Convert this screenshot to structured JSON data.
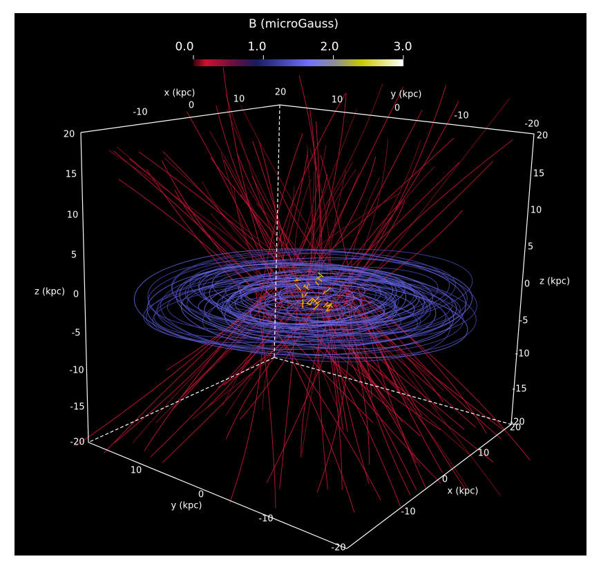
{
  "colorbar": {
    "title": "B (microGauss)",
    "ticks": [
      "0.0",
      "1.0",
      "2.0",
      "3.0"
    ]
  },
  "axes": {
    "top_x": {
      "label": "x (kpc)",
      "ticks": [
        "-10",
        "0",
        "10",
        "20"
      ]
    },
    "top_y": {
      "label": "y (kpc)",
      "ticks": [
        "10",
        "0",
        "-10",
        "-20"
      ]
    },
    "left_z": {
      "label": "z (kpc)",
      "ticks": [
        "20",
        "15",
        "10",
        "5",
        "0",
        "-5",
        "-10",
        "-15",
        "-20"
      ]
    },
    "right_z": {
      "label": "z (kpc)",
      "ticks": [
        "20",
        "15",
        "10",
        "5",
        "0",
        "-5",
        "-10",
        "-15",
        "-20"
      ]
    },
    "bottom_y": {
      "label": "y (kpc)",
      "ticks": [
        "10",
        "0",
        "-10",
        "-20"
      ]
    },
    "bottom_x": {
      "label": "x (kpc)",
      "ticks": [
        "20",
        "10",
        "0",
        "-10"
      ]
    }
  }
}
